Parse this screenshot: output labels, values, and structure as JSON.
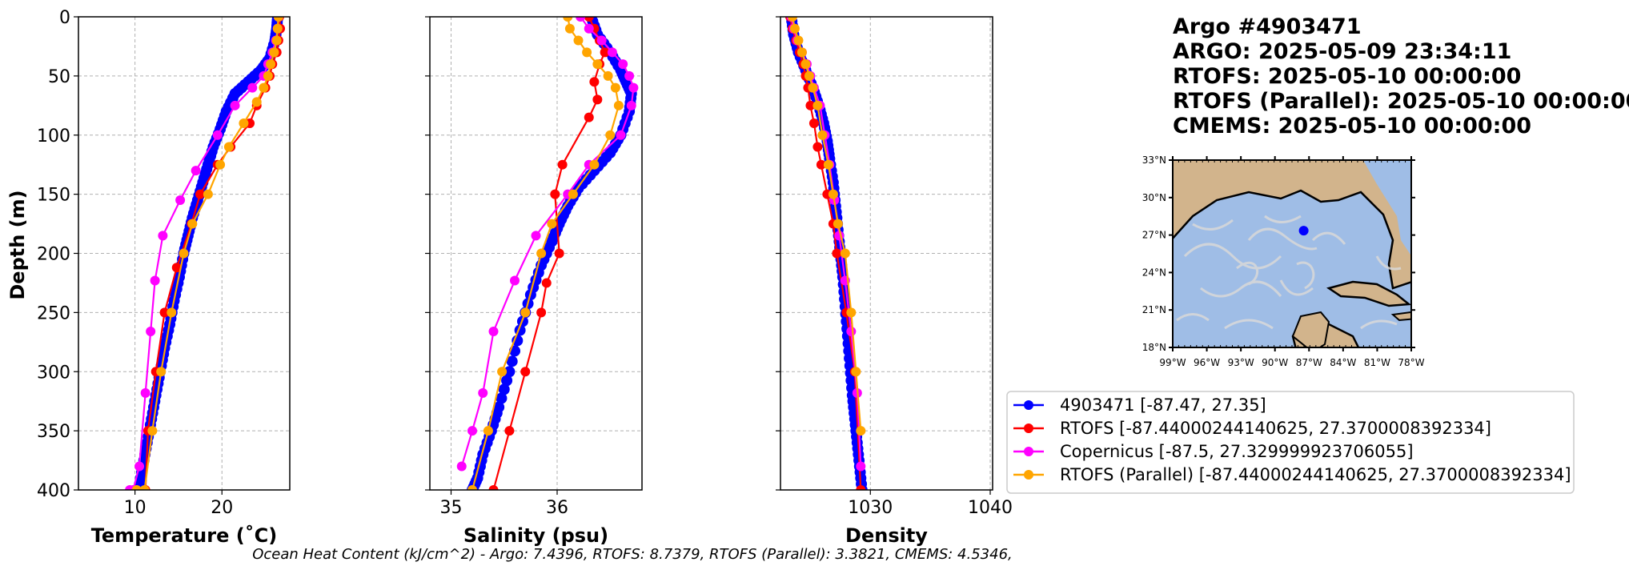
{
  "title_block": {
    "lines": [
      "Argo #4903471",
      "ARGO:  2025-05-09 23:34:11",
      "RTOFS: 2025-05-10 00:00:00",
      "RTOFS (Parallel): 2025-05-10 00:00:00",
      "CMEMS: 2025-05-10 00:00:00"
    ]
  },
  "footer": "Ocean Heat Content (kJ/cm^2) - Argo: 7.4396,  RTOFS: 8.7379,  RTOFS (Parallel): 3.3821,  CMEMS: 4.5346,",
  "colors": {
    "argo": "#0000ff",
    "rtofs": "#ff0000",
    "copernicus": "#ff00ff",
    "rtofs_parallel": "#ffa500"
  },
  "legend": [
    {
      "label": "4903471 [-87.47, 27.35]",
      "color": "#0000ff"
    },
    {
      "label": "RTOFS [-87.44000244140625, 27.3700008392334]",
      "color": "#ff0000"
    },
    {
      "label": "Copernicus [-87.5, 27.329999923706055]",
      "color": "#ff00ff"
    },
    {
      "label": "RTOFS (Parallel) [-87.44000244140625, 27.3700008392334]",
      "color": "#ffa500"
    }
  ],
  "map": {
    "lat_ticks": [
      "33°N",
      "30°N",
      "27°N",
      "24°N",
      "21°N",
      "18°N"
    ],
    "lon_ticks": [
      "99°W",
      "96°W",
      "93°W",
      "90°W",
      "87°W",
      "84°W",
      "81°W",
      "78°W"
    ],
    "lon_range": [
      -99,
      -78
    ],
    "lat_range": [
      18,
      33
    ],
    "float_position": [
      -87.47,
      27.35
    ],
    "land_color": "#d2b48c",
    "ocean_color": "#9fbde6"
  },
  "chart_data": [
    {
      "type": "line",
      "xlabel": "Temperature (˚C)",
      "ylabel": "Depth (m)",
      "xlim": [
        3.5,
        27.8
      ],
      "ylim": [
        400,
        0
      ],
      "xticks": [
        10,
        20
      ],
      "yticks": [
        0,
        50,
        100,
        150,
        200,
        250,
        300,
        350,
        400
      ],
      "grid": true,
      "series": [
        {
          "name": "4903471",
          "color": "#0000ff",
          "x": [
            26.4,
            26.3,
            26.1,
            25.5,
            24.5,
            23.0,
            21.5,
            20.5,
            19.8,
            19.0,
            18.4,
            17.8,
            17.2,
            16.6,
            16.1,
            15.6,
            15.1,
            14.5,
            14.0,
            13.4,
            12.9,
            12.4,
            11.9,
            11.4,
            10.9,
            10.4
          ],
          "y": [
            0,
            10,
            20,
            35,
            45,
            55,
            65,
            80,
            95,
            110,
            125,
            140,
            155,
            170,
            185,
            200,
            220,
            240,
            260,
            280,
            300,
            320,
            340,
            360,
            380,
            400
          ]
        },
        {
          "name": "RTOFS",
          "color": "#ff0000",
          "x": [
            26.6,
            26.7,
            26.5,
            26.3,
            25.8,
            25.5,
            25.0,
            24.0,
            23.2,
            21.0,
            19.5,
            17.5,
            16.5,
            14.8,
            13.4,
            12.4,
            11.5,
            11.2
          ],
          "y": [
            0,
            10,
            20,
            30,
            40,
            50,
            60,
            75,
            90,
            110,
            125,
            150,
            175,
            212,
            250,
            300,
            350,
            400
          ]
        },
        {
          "name": "Copernicus",
          "color": "#ff00ff",
          "x": [
            26.5,
            26.4,
            26.2,
            25.8,
            25.3,
            24.8,
            23.5,
            21.5,
            19.5,
            17.0,
            15.2,
            13.2,
            12.3,
            11.8,
            11.2,
            10.5,
            9.8,
            9.4
          ],
          "y": [
            0,
            10,
            20,
            30,
            40,
            50,
            60,
            75,
            100,
            130,
            155,
            185,
            223,
            266,
            318,
            380,
            400,
            400
          ]
        },
        {
          "name": "RTOFS (Parallel)",
          "color": "#ffa500",
          "x": [
            26.5,
            26.4,
            26.3,
            26.0,
            25.6,
            25.3,
            24.8,
            24.0,
            22.5,
            20.8,
            19.8,
            18.4,
            16.6,
            15.6,
            14.2,
            13.0,
            12.0,
            11.1,
            10.2
          ],
          "y": [
            0,
            10,
            20,
            30,
            40,
            50,
            60,
            72,
            90,
            110,
            125,
            150,
            175,
            200,
            250,
            300,
            350,
            400,
            400
          ]
        }
      ]
    },
    {
      "type": "line",
      "xlabel": "Salinity (psu)",
      "xlim": [
        34.8,
        36.8
      ],
      "ylim": [
        400,
        0
      ],
      "xticks": [
        35,
        36
      ],
      "yticks": [
        0,
        50,
        100,
        150,
        200,
        250,
        300,
        350,
        400
      ],
      "grid": true,
      "series": [
        {
          "name": "4903471",
          "color": "#0000ff",
          "x": [
            36.32,
            36.38,
            36.5,
            36.6,
            36.65,
            36.7,
            36.68,
            36.6,
            36.5,
            36.35,
            36.2,
            36.1,
            36.02,
            35.95,
            35.85,
            35.75,
            35.65,
            35.55,
            35.45,
            35.38,
            35.3,
            35.25,
            35.2
          ],
          "y": [
            0,
            15,
            30,
            45,
            55,
            65,
            80,
            100,
            115,
            130,
            145,
            160,
            175,
            190,
            210,
            235,
            265,
            300,
            330,
            350,
            370,
            390,
            400
          ]
        },
        {
          "name": "RTOFS",
          "color": "#ff0000",
          "x": [
            36.3,
            36.35,
            36.4,
            36.45,
            36.4,
            36.35,
            36.38,
            36.3,
            36.05,
            35.98,
            36.02,
            35.9,
            35.85,
            35.7,
            35.55,
            35.4
          ],
          "y": [
            0,
            10,
            20,
            30,
            40,
            55,
            70,
            85,
            125,
            150,
            200,
            225,
            250,
            300,
            350,
            400
          ]
        },
        {
          "name": "Copernicus",
          "color": "#ff00ff",
          "x": [
            36.22,
            36.3,
            36.42,
            36.52,
            36.62,
            36.68,
            36.72,
            36.7,
            36.6,
            36.3,
            36.1,
            35.8,
            35.6,
            35.4,
            35.3,
            35.2,
            35.1
          ],
          "y": [
            0,
            10,
            20,
            30,
            40,
            50,
            60,
            75,
            100,
            125,
            150,
            185,
            223,
            266,
            318,
            350,
            380
          ]
        },
        {
          "name": "RTOFS (Parallel)",
          "color": "#ffa500",
          "x": [
            36.1,
            36.12,
            36.2,
            36.28,
            36.38,
            36.48,
            36.55,
            36.58,
            36.5,
            36.35,
            36.15,
            35.95,
            35.85,
            35.7,
            35.48,
            35.35,
            35.2
          ],
          "y": [
            0,
            10,
            20,
            30,
            40,
            50,
            60,
            75,
            100,
            125,
            150,
            175,
            200,
            250,
            300,
            350,
            400
          ]
        }
      ]
    },
    {
      "type": "line",
      "xlabel": "Density",
      "xlim": [
        1022.5,
        1040.2
      ],
      "ylim": [
        400,
        0
      ],
      "xticks": [
        1030,
        1040
      ],
      "yticks": [
        0,
        50,
        100,
        150,
        200,
        250,
        300,
        350,
        400
      ],
      "grid": true,
      "series": [
        {
          "name": "4903471",
          "color": "#0000ff",
          "x": [
            1023.4,
            1023.6,
            1024.0,
            1024.6,
            1025.2,
            1025.7,
            1026.1,
            1026.4,
            1026.6,
            1026.9,
            1027.1,
            1027.3,
            1027.5,
            1027.7,
            1027.9,
            1028.1,
            1028.3,
            1028.5,
            1028.7,
            1028.9,
            1029.1,
            1029.3
          ],
          "y": [
            0,
            15,
            30,
            45,
            60,
            75,
            90,
            105,
            120,
            140,
            160,
            180,
            200,
            220,
            245,
            270,
            295,
            320,
            340,
            360,
            380,
            400
          ]
        },
        {
          "name": "RTOFS",
          "color": "#ff0000",
          "x": [
            1023.3,
            1023.5,
            1023.8,
            1024.1,
            1024.4,
            1024.6,
            1024.8,
            1025.0,
            1025.3,
            1025.6,
            1025.9,
            1026.4,
            1026.9,
            1027.2,
            1028.0,
            1028.7,
            1029.2
          ],
          "y": [
            0,
            10,
            20,
            30,
            40,
            50,
            60,
            75,
            90,
            110,
            125,
            150,
            175,
            200,
            250,
            300,
            400
          ]
        },
        {
          "name": "Copernicus",
          "color": "#ff00ff",
          "x": [
            1023.4,
            1023.6,
            1023.9,
            1024.3,
            1024.7,
            1025.0,
            1025.3,
            1025.8,
            1026.2,
            1026.6,
            1027.0,
            1027.4,
            1027.9,
            1028.4,
            1028.9,
            1029.2
          ],
          "y": [
            0,
            10,
            20,
            30,
            40,
            50,
            60,
            75,
            100,
            125,
            155,
            185,
            223,
            266,
            318,
            380
          ]
        },
        {
          "name": "RTOFS (Parallel)",
          "color": "#ffa500",
          "x": [
            1023.5,
            1023.7,
            1024.0,
            1024.3,
            1024.6,
            1024.9,
            1025.2,
            1025.6,
            1026.0,
            1026.5,
            1026.9,
            1027.3,
            1027.9,
            1028.4,
            1028.8,
            1029.2
          ],
          "y": [
            0,
            10,
            20,
            30,
            40,
            50,
            60,
            75,
            100,
            125,
            150,
            175,
            200,
            250,
            300,
            350
          ]
        }
      ]
    }
  ]
}
